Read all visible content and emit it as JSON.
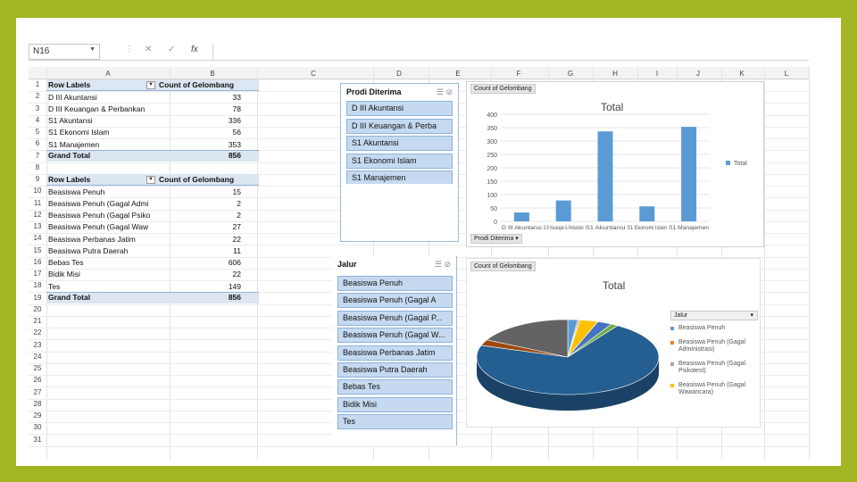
{
  "formula_bar": {
    "name_box": "N16",
    "fx_label": "fx",
    "formula": ""
  },
  "columns": [
    "A",
    "B",
    "C",
    "D",
    "E",
    "F",
    "G",
    "H",
    "I",
    "J",
    "K",
    "L"
  ],
  "rows": [
    "1",
    "2",
    "3",
    "4",
    "5",
    "6",
    "7",
    "8",
    "9",
    "10",
    "11",
    "12",
    "13",
    "14",
    "15",
    "16",
    "17",
    "18",
    "19",
    "20",
    "21",
    "22",
    "23",
    "24",
    "25",
    "26",
    "27",
    "28",
    "29",
    "30",
    "31"
  ],
  "pivot1": {
    "header_label": "Row Labels",
    "header_value": "Count of Gelombang",
    "rows": [
      {
        "label": "D III Akuntansi",
        "value": "33"
      },
      {
        "label": "D III Keuangan & Perbankan",
        "value": "78"
      },
      {
        "label": "S1 Akuntansi",
        "value": "336"
      },
      {
        "label": "S1 Ekonomi Islam",
        "value": "56"
      },
      {
        "label": "S1 Manajemen",
        "value": "353"
      }
    ],
    "total_label": "Grand Total",
    "total_value": "856"
  },
  "pivot2": {
    "header_label": "Row Labels",
    "header_value": "Count of Gelombang",
    "rows": [
      {
        "label": "Beasiswa Penuh",
        "value": "15"
      },
      {
        "label": "Beasiswa Penuh (Gagal Admi",
        "value": "2"
      },
      {
        "label": "Beasiswa Penuh (Gagal Psiko",
        "value": "2"
      },
      {
        "label": "Beasiswa Penuh (Gagal Waw",
        "value": "27"
      },
      {
        "label": "Beasiswa Perbanas Jatim",
        "value": "22"
      },
      {
        "label": "Beasiswa Putra Daerah",
        "value": "11"
      },
      {
        "label": "Bebas Tes",
        "value": "606"
      },
      {
        "label": "Bidik Misi",
        "value": "22"
      },
      {
        "label": "Tes",
        "value": "149"
      }
    ],
    "total_label": "Grand Total",
    "total_value": "856"
  },
  "slicer_prodi": {
    "title": "Prodi Diterima",
    "items": [
      "D III Akuntansi",
      "D III Keuangan & Perba",
      "S1 Akuntansi",
      "S1 Ekonomi Islam",
      "S1 Manajemen"
    ]
  },
  "slicer_jalur": {
    "title": "Jalur",
    "items": [
      "Beasiswa Penuh",
      "Beasiswa Penuh (Gagal A",
      "Beasiswa Penuh (Gagal P...",
      "Beasiswa Penuh (Gagal W...",
      "Beasiswa Perbanas Jatim",
      "Beasiswa Putra Daerah",
      "Bebas Tes",
      "Bidik Misi",
      "Tes"
    ]
  },
  "bar_chart_buttons": {
    "value_field": "Count of Gelombang",
    "axis_field": "Prodi Diterima"
  },
  "pie_chart_buttons": {
    "value_field": "Count of Gelombang",
    "legend_field": "Jalur"
  },
  "chart_data": [
    {
      "type": "bar",
      "title": "Total",
      "categories": [
        "D III Akuntansi",
        "D III Keuangan & Perbankan",
        "S1 Akuntansi",
        "S1 Ekonomi Islam",
        "S1 Manajemen"
      ],
      "series": [
        {
          "name": "Total",
          "values": [
            33,
            78,
            336,
            56,
            353
          ]
        }
      ],
      "ylim": [
        0,
        400
      ],
      "yticks": [
        "0",
        "50",
        "100",
        "150",
        "200",
        "250",
        "300",
        "350",
        "400"
      ],
      "legend_text": "Total",
      "color": "#5b9bd5",
      "legend": "right"
    },
    {
      "type": "pie",
      "title": "Total",
      "categories": [
        "Beasiswa Penuh",
        "Beasiswa Penuh (Gagal Admi",
        "Beasiswa Penuh (Gagal Psiko",
        "Beasiswa Penuh (Gagal Waw",
        "Beasiswa Perbanas Jatim",
        "Beasiswa Putra Daerah",
        "Bebas Tes",
        "Bidik Misi",
        "Tes"
      ],
      "values": [
        15,
        2,
        2,
        27,
        22,
        11,
        606,
        22,
        149
      ],
      "colors": [
        "#5b9bd5",
        "#ed7d31",
        "#a5a5a5",
        "#ffc000",
        "#4472c4",
        "#70ad47",
        "#255e91",
        "#9e480e",
        "#636363"
      ],
      "legend_entries": [
        {
          "text": "Beasiswa Penuh",
          "color": "#5b9bd5"
        },
        {
          "text": "Beasiswa Penuh (Gagal Administrasi)",
          "color": "#ed7d31"
        },
        {
          "text": "Beasiswa Penuh (Gagal Psikotest)",
          "color": "#a5a5a5"
        },
        {
          "text": "Beasiswa Penuh (Gagal Wawancara)",
          "color": "#ffc000"
        }
      ],
      "legend": "right"
    }
  ]
}
